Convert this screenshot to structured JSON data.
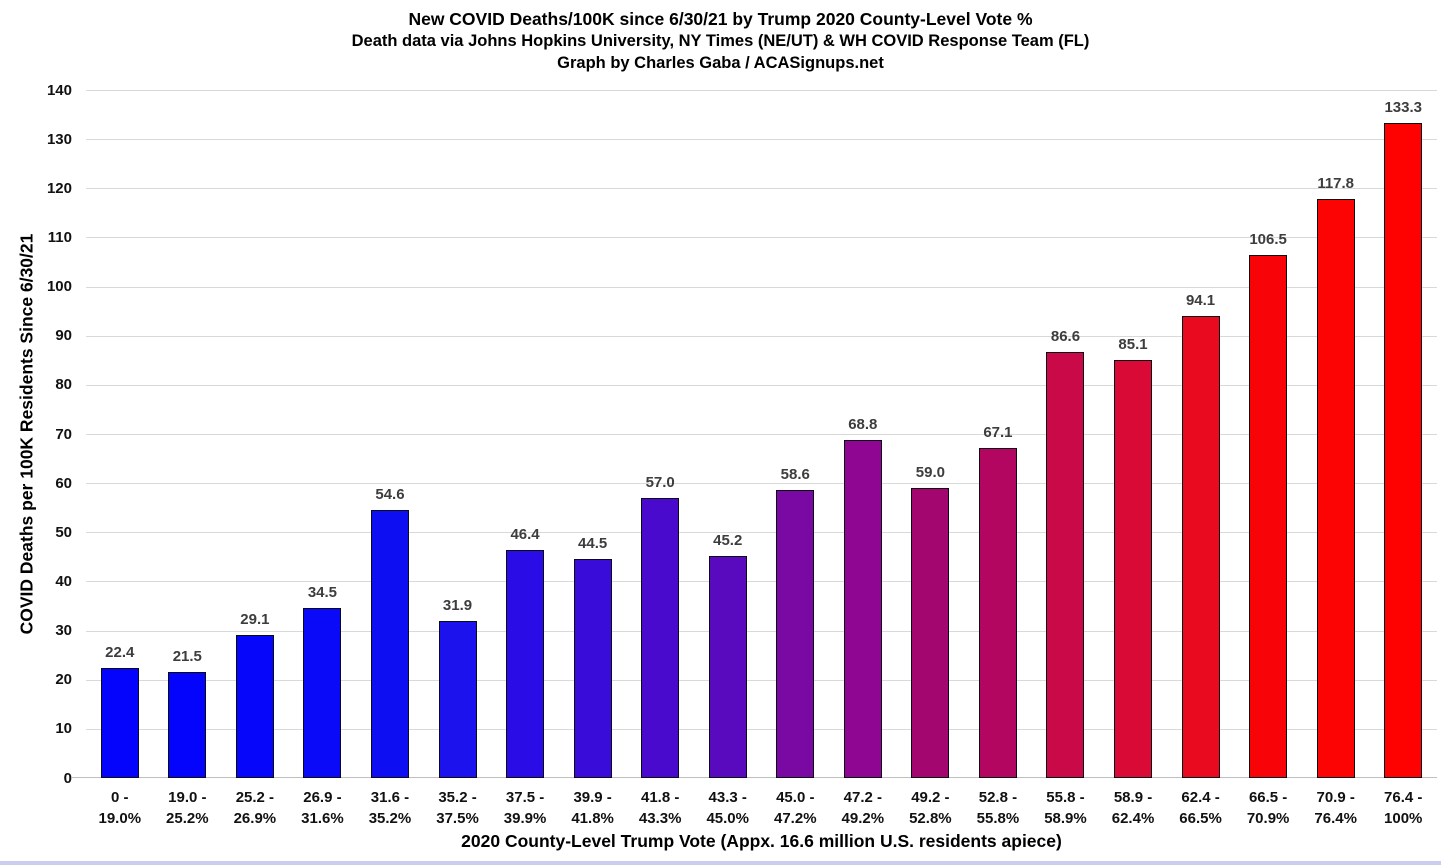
{
  "page": {
    "background": "#ffffff",
    "bottom_border_color": "#cbcdf0"
  },
  "chart_data": {
    "type": "bar",
    "title": "New COVID Deaths/100K since 6/30/21 by Trump 2020 County-Level Vote %",
    "subtitle": "Death data via Johns Hopkins University, NY Times (NE/UT) & WH COVID Response Team (FL)",
    "credit": "Graph by Charles Gaba / ACASignups.net",
    "xlabel": "2020 County-Level Trump Vote (Appx. 16.6 million U.S. residents apiece)",
    "ylabel": "COVID Deaths per 100K Residents Since 6/30/21",
    "ylim": [
      0,
      140
    ],
    "ytick_step": 10,
    "grid": true,
    "legend": false,
    "categories": [
      "0 -\n19.0%",
      "19.0 -\n25.2%",
      "25.2 -\n26.9%",
      "26.9 -\n31.6%",
      "31.6 -\n35.2%",
      "35.2 -\n37.5%",
      "37.5 -\n39.9%",
      "39.9 -\n41.8%",
      "41.8 -\n43.3%",
      "43.3 -\n45.0%",
      "45.0 -\n47.2%",
      "47.2 -\n49.2%",
      "49.2 -\n52.8%",
      "52.8 -\n55.8%",
      "55.8 -\n58.9%",
      "58.9 -\n62.4%",
      "62.4 -\n66.5%",
      "66.5 -\n70.9%",
      "70.9 -\n76.4%",
      "76.4 -\n100%"
    ],
    "values": [
      22.4,
      21.5,
      29.1,
      34.5,
      54.6,
      31.9,
      46.4,
      44.5,
      57.0,
      45.2,
      58.6,
      68.8,
      59.0,
      67.1,
      86.6,
      85.1,
      94.1,
      106.5,
      117.8,
      133.3
    ],
    "value_labels": [
      "22.4",
      "21.5",
      "29.1",
      "34.5",
      "54.6",
      "31.9",
      "46.4",
      "44.5",
      "57.0",
      "45.2",
      "58.6",
      "68.8",
      "59.0",
      "67.1",
      "86.6",
      "85.1",
      "94.1",
      "106.5",
      "117.8",
      "133.3"
    ],
    "bar_colors": [
      "#0404fc",
      "#0404fc",
      "#0606fa",
      "#0a0af8",
      "#0e0ef2",
      "#1c12ee",
      "#2a0ce6",
      "#3a0cda",
      "#4a0ace",
      "#5a0abe",
      "#7a08a2",
      "#8e0692",
      "#a40670",
      "#b20660",
      "#ca0a48",
      "#da0a36",
      "#ea0a20",
      "#f80408",
      "#fc0404",
      "#fe0202"
    ],
    "bar_border_color": "#0b0b16",
    "value_label_color": "#3d3d3d",
    "gridline_color": "#d9d9d9",
    "axis_line_color": "#c0c0c0"
  }
}
